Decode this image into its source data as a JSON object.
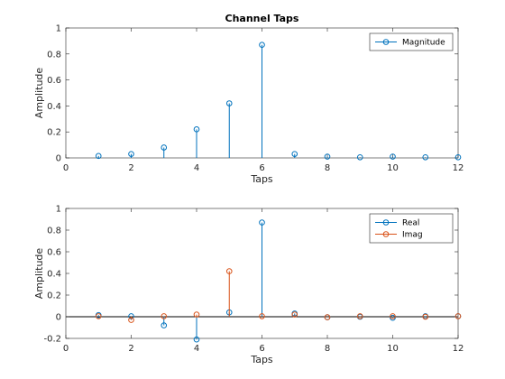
{
  "chart_data": [
    {
      "type": "stem",
      "title": "Channel Taps",
      "xlabel": "Taps",
      "ylabel": "Amplitude",
      "xlim": [
        0,
        12
      ],
      "ylim": [
        0,
        1
      ],
      "xticks": [
        "0",
        "2",
        "4",
        "6",
        "8",
        "10",
        "12"
      ],
      "yticks": [
        "0",
        "0.2",
        "0.4",
        "0.6",
        "0.8",
        "1"
      ],
      "legend_position": "top-right",
      "series": [
        {
          "name": "Magnitude",
          "color": "#0072bd",
          "x": [
            1,
            2,
            3,
            4,
            5,
            6,
            7,
            8,
            9,
            10,
            11,
            12
          ],
          "values": [
            0.015,
            0.03,
            0.08,
            0.22,
            0.42,
            0.87,
            0.03,
            0.01,
            0.005,
            0.01,
            0.005,
            0.005
          ]
        }
      ]
    },
    {
      "type": "stem",
      "title": "",
      "xlabel": "Taps",
      "ylabel": "Amplitude",
      "xlim": [
        0,
        12
      ],
      "ylim": [
        -0.2,
        1
      ],
      "xticks": [
        "0",
        "2",
        "4",
        "6",
        "8",
        "10",
        "12"
      ],
      "yticks": [
        "-0.2",
        "0",
        "0.2",
        "0.4",
        "0.6",
        "0.8",
        "1"
      ],
      "legend_position": "top-right",
      "series": [
        {
          "name": "Real",
          "color": "#0072bd",
          "x": [
            1,
            2,
            3,
            4,
            5,
            6,
            7,
            8,
            9,
            10,
            11,
            12
          ],
          "values": [
            0.015,
            0.005,
            -0.08,
            -0.21,
            0.04,
            0.87,
            0.03,
            -0.005,
            0.0,
            -0.01,
            0.005,
            0.005
          ]
        },
        {
          "name": "Imag",
          "color": "#d95319",
          "x": [
            1,
            2,
            3,
            4,
            5,
            6,
            7,
            8,
            9,
            10,
            11,
            12
          ],
          "values": [
            0.005,
            -0.03,
            0.005,
            0.02,
            0.42,
            0.005,
            0.02,
            -0.005,
            0.005,
            0.005,
            0.0,
            0.005
          ]
        }
      ]
    }
  ]
}
